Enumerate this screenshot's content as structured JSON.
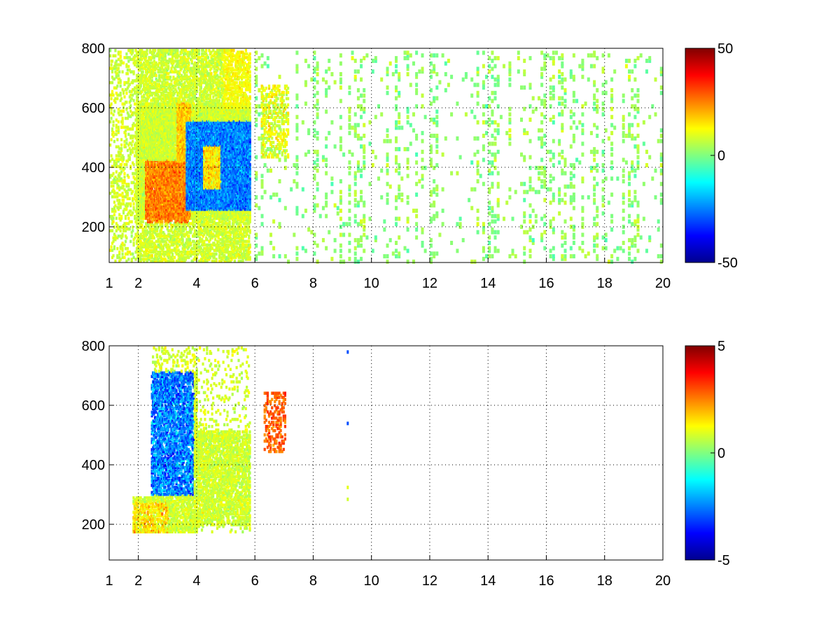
{
  "figure": {
    "background": "#ffffff"
  },
  "chart_data": [
    {
      "type": "heatmap",
      "panel": "top",
      "x_ticks": [
        1,
        2,
        4,
        6,
        8,
        10,
        12,
        14,
        16,
        18,
        20
      ],
      "y_ticks": [
        200,
        400,
        600,
        800
      ],
      "xlim": [
        1,
        20
      ],
      "ylim": [
        80,
        800
      ],
      "grid": true,
      "grid_style": "dotted",
      "colorbar": {
        "min": -50,
        "max": 50,
        "ticks": [
          -50,
          0,
          50
        ],
        "colormap": "jet"
      },
      "regions": [
        {
          "x": [
            1.0,
            5.8
          ],
          "y": [
            100,
            800
          ],
          "values": "dense band, positive values up to ~40 around x 2.5-3.5, y 250-400"
        },
        {
          "x": [
            3.5,
            5.8
          ],
          "y": [
            250,
            600
          ],
          "values": "negative values down to ~-40 around x 4-5, y 280-400"
        },
        {
          "x": [
            6.0,
            20.0
          ],
          "y": [
            80,
            800
          ],
          "values": "sparse scattered pixels, values near 0 (about -15 to 10)"
        }
      ]
    },
    {
      "type": "heatmap",
      "panel": "bottom",
      "x_ticks": [
        1,
        2,
        4,
        6,
        8,
        10,
        12,
        14,
        16,
        18,
        20
      ],
      "y_ticks": [
        200,
        400,
        600,
        800
      ],
      "xlim": [
        1,
        20
      ],
      "ylim": [
        80,
        800
      ],
      "grid": true,
      "grid_style": "dotted",
      "colorbar": {
        "min": -5,
        "max": 5,
        "ticks": [
          -5,
          0,
          5
        ],
        "colormap": "jet"
      },
      "regions": [
        {
          "x": [
            1.8,
            5.8
          ],
          "y": [
            180,
            800
          ],
          "values": "values mostly near 0 to 1, negatives down to ~-4 around x 2.5-3.8, y 300-700"
        },
        {
          "x": [
            6.3,
            7.0
          ],
          "y": [
            450,
            650
          ],
          "values": "small cluster with values about 2 to 4"
        },
        {
          "x": [
            9.1,
            9.2
          ],
          "y": [
            280,
            790
          ],
          "values": "few isolated pixels, values about -3 to 1"
        }
      ]
    }
  ]
}
